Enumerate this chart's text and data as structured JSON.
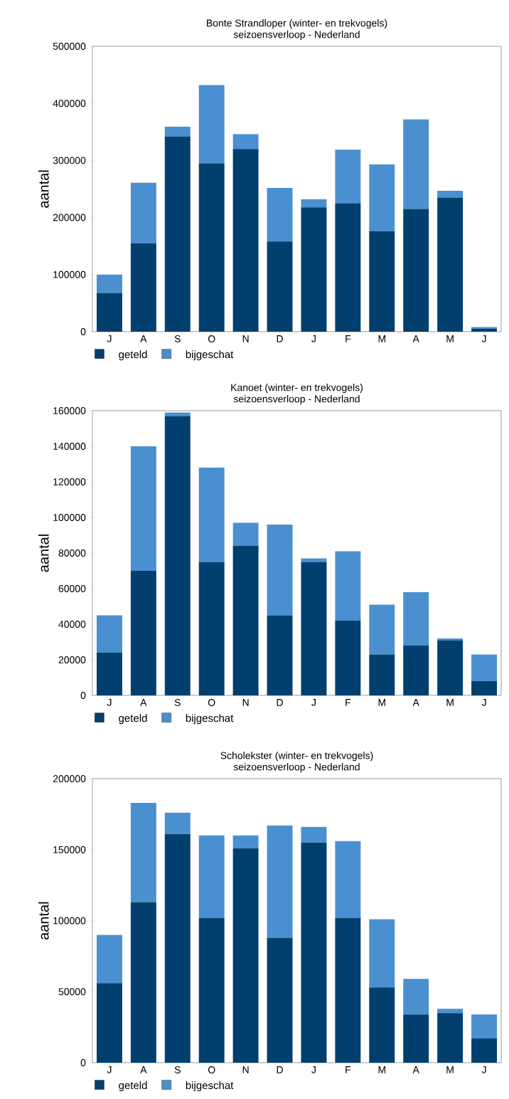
{
  "chart_data": [
    {
      "type": "bar",
      "title": "Bonte Strandloper (winter- en trekvogels)",
      "subtitle": "seizoensverloop - Nederland",
      "ylabel": "aantal",
      "categories": [
        "J",
        "A",
        "S",
        "O",
        "N",
        "D",
        "J",
        "F",
        "M",
        "A",
        "M",
        "J"
      ],
      "stacked": true,
      "legend": "bottom left",
      "ylim": [
        0,
        500000
      ],
      "yticks": [
        0,
        100000,
        200000,
        300000,
        400000,
        500000
      ],
      "series": [
        {
          "name": "geteld",
          "color": "#003f6e",
          "values": [
            68000,
            155000,
            342000,
            295000,
            320000,
            158000,
            218000,
            225000,
            176000,
            215000,
            235000,
            5000
          ]
        },
        {
          "name": "bijgeschat",
          "color": "#4a90d0",
          "values": [
            32000,
            106000,
            17000,
            137000,
            26000,
            94000,
            14000,
            94000,
            117000,
            157000,
            12000,
            3000
          ]
        }
      ]
    },
    {
      "type": "bar",
      "title": "Kanoet (winter- en trekvogels)",
      "subtitle": "seizoensverloop - Nederland",
      "ylabel": "aantal",
      "categories": [
        "J",
        "A",
        "S",
        "O",
        "N",
        "D",
        "J",
        "F",
        "M",
        "A",
        "M",
        "J"
      ],
      "stacked": true,
      "legend": "bottom left",
      "ylim": [
        0,
        160000
      ],
      "yticks": [
        0,
        20000,
        40000,
        60000,
        80000,
        100000,
        120000,
        140000,
        160000
      ],
      "series": [
        {
          "name": "geteld",
          "color": "#003f6e",
          "values": [
            24000,
            70000,
            157000,
            75000,
            84000,
            45000,
            75000,
            42000,
            23000,
            28000,
            31000,
            8000
          ]
        },
        {
          "name": "bijgeschat",
          "color": "#4a90d0",
          "values": [
            21000,
            70000,
            2000,
            53000,
            13000,
            51000,
            2000,
            39000,
            28000,
            30000,
            1000,
            15000
          ]
        }
      ]
    },
    {
      "type": "bar",
      "title": "Scholekster (winter- en trekvogels)",
      "subtitle": "seizoensverloop - Nederland",
      "ylabel": "aantal",
      "categories": [
        "J",
        "A",
        "S",
        "O",
        "N",
        "D",
        "J",
        "F",
        "M",
        "A",
        "M",
        "J"
      ],
      "stacked": true,
      "legend": "bottom left",
      "ylim": [
        0,
        200000
      ],
      "yticks": [
        0,
        50000,
        100000,
        150000,
        200000
      ],
      "series": [
        {
          "name": "geteld",
          "color": "#003f6e",
          "values": [
            56000,
            113000,
            161000,
            102000,
            151000,
            88000,
            155000,
            102000,
            53000,
            34000,
            35000,
            17000
          ]
        },
        {
          "name": "bijgeschat",
          "color": "#4a90d0",
          "values": [
            34000,
            70000,
            15000,
            58000,
            9000,
            79000,
            11000,
            54000,
            48000,
            25000,
            3000,
            17000
          ]
        }
      ]
    }
  ]
}
